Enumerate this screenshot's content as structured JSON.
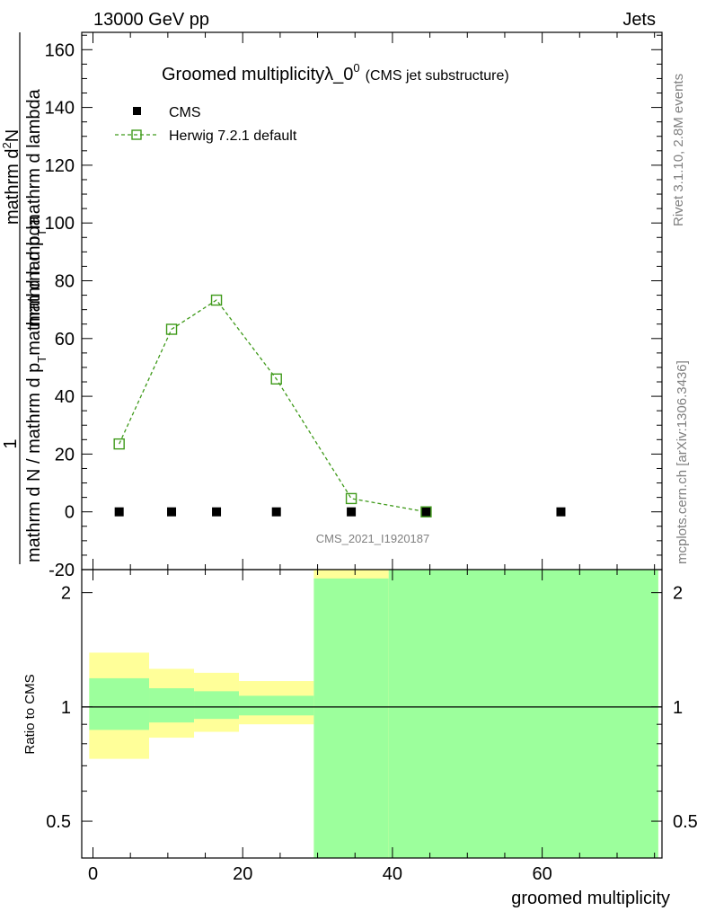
{
  "header": {
    "left": "13000 GeV pp",
    "right": "Jets"
  },
  "side_labels": {
    "rivet": "Rivet 3.1.10,  2.8M events",
    "mcplots": "mcplots.cern.ch [arXiv:1306.3436]"
  },
  "watermark": "CMS_2021_I1920187",
  "colors": {
    "herwig": "#3f9a1a",
    "band_inner": "#9cff9c",
    "band_outer": "#ffff99",
    "data": "#000000"
  },
  "chart_data": [
    {
      "type": "scatter",
      "title": {
        "main": "Groomed multiplicityλ_0",
        "sup": "0",
        "sub": "(CMS jet substructure)"
      },
      "ylabel": {
        "numerator": "1",
        "denominator": "mathrm d N / mathrm d p",
        "denominator_sub": "T",
        "denominator_rest": "mathrm d lambda",
        "frac2_num": "mathrm d",
        "frac2_num_sup": "2",
        "frac2_num_rest": "N",
        "frac2_den": "mathrm d p",
        "frac2_den_sub": "T",
        "frac2_den_rest": "mathrm d lambda"
      },
      "xlim": [
        -1.5,
        76
      ],
      "ylim": [
        -20,
        166
      ],
      "yticks": [
        -20,
        0,
        20,
        40,
        60,
        80,
        100,
        120,
        140,
        160
      ],
      "legend": {
        "placement": "top-left",
        "entries": [
          "CMS",
          "Herwig 7.2.1 default"
        ]
      },
      "series": [
        {
          "name": "CMS",
          "marker": "filled-square",
          "x": [
            3.5,
            10.5,
            16.5,
            24.5,
            34.5,
            44.5,
            62.5
          ],
          "y": [
            0,
            0,
            0,
            0,
            0,
            0,
            0
          ]
        },
        {
          "name": "Herwig 7.2.1 default",
          "marker": "open-square",
          "line": "dashed",
          "x": [
            3.5,
            10.5,
            16.5,
            24.5,
            34.5,
            44.5
          ],
          "y": [
            23.5,
            63.2,
            73.3,
            46.0,
            4.6,
            0.0
          ]
        }
      ]
    },
    {
      "type": "area",
      "ylabel": "Ratio to CMS",
      "xlabel": "groomed multiplicity",
      "xlim": [
        -1.5,
        76
      ],
      "ylim": [
        0.4,
        2.3
      ],
      "yscale": "log",
      "yticks": [
        0.5,
        1,
        2
      ],
      "xticks": [
        0,
        20,
        40,
        60
      ],
      "reference_line": 1,
      "bands": [
        {
          "x0": -0.5,
          "x1": 7.5,
          "outer": [
            0.73,
            1.39
          ],
          "inner": [
            0.87,
            1.19
          ]
        },
        {
          "x0": 7.5,
          "x1": 13.5,
          "outer": [
            0.83,
            1.26
          ],
          "inner": [
            0.91,
            1.12
          ]
        },
        {
          "x0": 13.5,
          "x1": 19.5,
          "outer": [
            0.86,
            1.23
          ],
          "inner": [
            0.93,
            1.1
          ]
        },
        {
          "x0": 19.5,
          "x1": 29.5,
          "outer": [
            0.9,
            1.17
          ],
          "inner": [
            0.95,
            1.07
          ]
        },
        {
          "x0": 29.5,
          "x1": 39.5,
          "outer": [
            0.0001,
            100
          ],
          "inner": [
            0.0001,
            2.18
          ]
        },
        {
          "x0": 39.5,
          "x1": 75.5,
          "outer": [
            0.0001,
            100
          ],
          "inner": [
            0.0001,
            100
          ]
        }
      ]
    }
  ]
}
